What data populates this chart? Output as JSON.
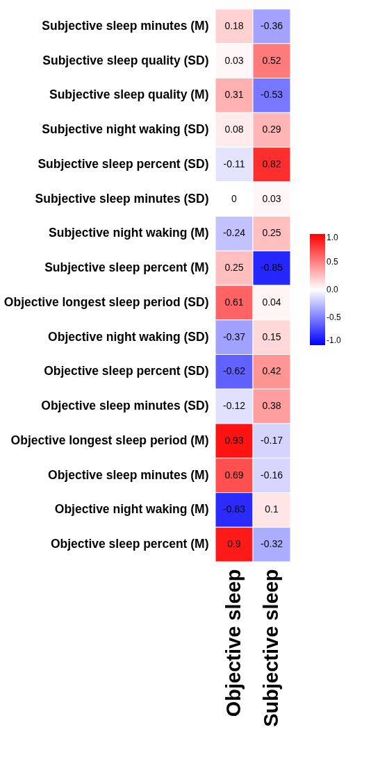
{
  "chart_data": {
    "type": "heatmap",
    "categories": [
      "Objective sleep",
      "Subjective sleep"
    ],
    "y_categories": [
      "Subjective sleep minutes (M)",
      "Subjective sleep quality (SD)",
      "Subjective sleep quality (M)",
      "Subjective night waking (SD)",
      "Subjective sleep percent (SD)",
      "Subjective sleep minutes (SD)",
      "Subjective night waking (M)",
      "Subjective sleep percent (M)",
      "Objective longest sleep period (SD)",
      "Objective night waking (SD)",
      "Objective sleep percent (SD)",
      "Objective sleep minutes (SD)",
      "Objective longest sleep period (M)",
      "Objective sleep minutes (M)",
      "Objective night waking (M)",
      "Objective sleep percent (M)"
    ],
    "cells": [
      [
        0.18,
        -0.36
      ],
      [
        0.03,
        0.52
      ],
      [
        0.31,
        -0.53
      ],
      [
        0.08,
        0.29
      ],
      [
        -0.11,
        0.82
      ],
      [
        0,
        0.03
      ],
      [
        -0.24,
        0.25
      ],
      [
        0.25,
        -0.85
      ],
      [
        0.61,
        0.04
      ],
      [
        -0.37,
        0.15
      ],
      [
        -0.62,
        0.42
      ],
      [
        -0.12,
        0.38
      ],
      [
        0.93,
        -0.17
      ],
      [
        0.69,
        -0.16
      ],
      [
        -0.83,
        0.1
      ],
      [
        0.9,
        -0.32
      ]
    ],
    "data_labels": true,
    "clim": [
      -1,
      1
    ],
    "cticks": [
      {
        "value": -1,
        "label": "-1.0"
      },
      {
        "value": -0.5,
        "label": "-0.5"
      },
      {
        "value": 0,
        "label": "0.0"
      },
      {
        "value": 0.5,
        "label": "0.5"
      },
      {
        "value": 1,
        "label": "1.0"
      }
    ]
  }
}
